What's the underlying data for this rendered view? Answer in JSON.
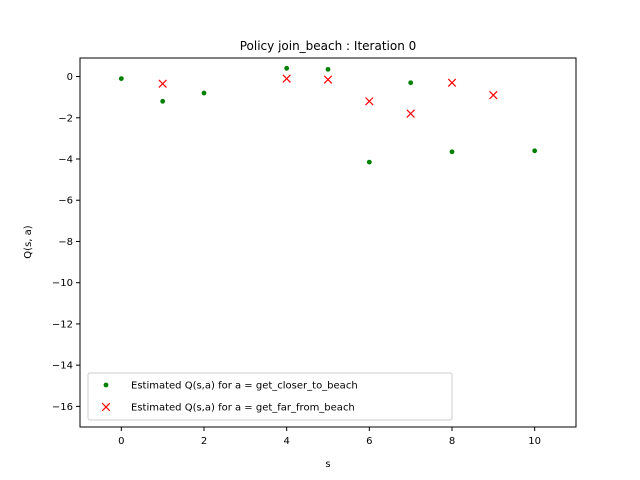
{
  "chart_data": {
    "type": "scatter",
    "title": "Policy join_beach : Iteration 0",
    "xlabel": "s",
    "ylabel": "Q(s, a)",
    "xlim": [
      -1,
      11
    ],
    "ylim": [
      -17,
      0.9
    ],
    "xticks": [
      0,
      2,
      4,
      6,
      8,
      10
    ],
    "yticks": [
      0,
      -2,
      -4,
      -6,
      -8,
      -10,
      -12,
      -14,
      -16
    ],
    "xtick_labels": [
      "0",
      "2",
      "4",
      "6",
      "8",
      "10"
    ],
    "ytick_labels": [
      "0",
      "−2",
      "−4",
      "−6",
      "−8",
      "−10",
      "−12",
      "−14",
      "−16"
    ],
    "grid": false,
    "legend_position": "lower-left",
    "series": [
      {
        "name": "Estimated Q(s,a) for a = get_closer_to_beach",
        "marker": "dot",
        "color": "#008000",
        "points": [
          [
            0,
            -0.1
          ],
          [
            1,
            -1.2
          ],
          [
            2,
            -0.8
          ],
          [
            4,
            0.4
          ],
          [
            5,
            0.35
          ],
          [
            6,
            -4.15
          ],
          [
            7,
            -0.3
          ],
          [
            8,
            -3.65
          ],
          [
            10,
            -3.6
          ]
        ]
      },
      {
        "name": "Estimated Q(s,a) for a = get_far_from_beach",
        "marker": "x",
        "color": "#ff0000",
        "points": [
          [
            1,
            -0.35
          ],
          [
            4,
            -0.1
          ],
          [
            5,
            -0.15
          ],
          [
            6,
            -1.2
          ],
          [
            7,
            -1.8
          ],
          [
            8,
            -0.3
          ],
          [
            9,
            -0.9
          ]
        ]
      }
    ]
  }
}
